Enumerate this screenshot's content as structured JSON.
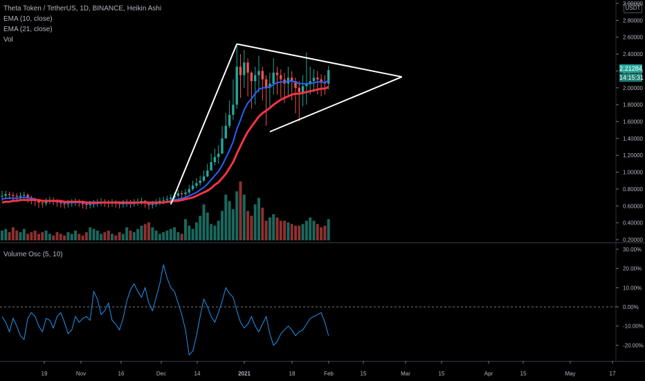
{
  "legend": {
    "title": "Theta Token / TetherUS, 1D, BINANCE, Heikin Ashi",
    "ema10": "EMA (10, close)",
    "ema21": "EMA (21, close)",
    "vol": "Vol",
    "osc": "Volume Osc (5, 10)"
  },
  "currency": "USDT",
  "last_price": "2.21284",
  "countdown": "14:15:31",
  "colors": {
    "up": "#26a69a",
    "down": "#ef5350",
    "ema10": "#2962ff",
    "ema21": "#f23645",
    "osc": "#2196f3",
    "trendlines": "#ffffff"
  },
  "price_axis_labels": [
    "3.00000",
    "2.80000",
    "2.60000",
    "2.40000",
    "2.20000",
    "2.00000",
    "1.80000",
    "1.60000",
    "1.40000",
    "1.20000",
    "1.00000",
    "0.80000",
    "0.60000",
    "0.40000",
    "0.20000"
  ],
  "osc_axis_labels": [
    "30.00%",
    "20.00%",
    "10.00%",
    "0.00%",
    "-10.00%",
    "-20.00%"
  ],
  "time_labels": [
    "19",
    "Nov",
    "16",
    "Dec",
    "14",
    "2021",
    "18",
    "Feb",
    "15",
    "Mar",
    "15",
    "Apr",
    "15",
    "May",
    "17"
  ],
  "chart_data": [
    {
      "type": "candlestick",
      "title": "Theta Token / TetherUS, 1D, BINANCE, Heikin Ashi",
      "ylim": [
        0.2,
        3.0
      ],
      "y_ticks": [
        3.0,
        2.8,
        2.6,
        2.4,
        2.2,
        2.0,
        1.8,
        1.6,
        1.4,
        1.2,
        1.0,
        0.8,
        0.6,
        0.4,
        0.2
      ],
      "x_tick_labels": [
        "19",
        "Nov",
        "16",
        "Dec",
        "14",
        "2021",
        "18",
        "Feb",
        "15",
        "Mar",
        "15",
        "Apr",
        "15",
        "May",
        "17"
      ],
      "close": [
        0.72,
        0.74,
        0.73,
        0.72,
        0.71,
        0.72,
        0.73,
        0.7,
        0.68,
        0.66,
        0.64,
        0.63,
        0.65,
        0.67,
        0.66,
        0.64,
        0.63,
        0.62,
        0.63,
        0.64,
        0.65,
        0.64,
        0.62,
        0.61,
        0.62,
        0.63,
        0.64,
        0.65,
        0.64,
        0.63,
        0.64,
        0.63,
        0.62,
        0.63,
        0.64,
        0.63,
        0.64,
        0.65,
        0.66,
        0.63,
        0.61,
        0.62,
        0.64,
        0.66,
        0.67,
        0.68,
        0.7,
        0.72,
        0.75,
        0.74,
        0.76,
        0.8,
        0.84,
        0.87,
        0.9,
        0.95,
        1.02,
        1.12,
        1.18,
        1.22,
        1.4,
        1.55,
        1.68,
        1.8,
        2.25,
        2.15,
        2.3,
        2.18,
        2.08,
        2.15,
        2.2,
        2.1,
        2.0,
        2.05,
        2.18,
        2.15,
        2.1,
        2.05,
        2.12,
        2.08,
        2.0,
        1.95,
        2.02,
        2.05,
        2.08,
        2.12,
        2.1,
        2.06,
        2.05,
        2.21
      ],
      "high": [
        0.78,
        0.78,
        0.77,
        0.76,
        0.75,
        0.76,
        0.77,
        0.75,
        0.72,
        0.7,
        0.68,
        0.67,
        0.69,
        0.71,
        0.7,
        0.68,
        0.67,
        0.66,
        0.67,
        0.68,
        0.69,
        0.68,
        0.66,
        0.65,
        0.66,
        0.67,
        0.68,
        0.69,
        0.68,
        0.67,
        0.68,
        0.67,
        0.66,
        0.67,
        0.68,
        0.67,
        0.68,
        0.69,
        0.7,
        0.67,
        0.65,
        0.66,
        0.68,
        0.7,
        0.71,
        0.72,
        0.74,
        0.76,
        0.79,
        0.78,
        0.8,
        0.85,
        0.9,
        0.93,
        0.96,
        1.02,
        1.1,
        1.22,
        1.28,
        1.32,
        1.55,
        1.7,
        1.85,
        2.1,
        2.52,
        2.4,
        2.45,
        2.35,
        2.2,
        2.25,
        2.38,
        2.25,
        2.15,
        2.18,
        2.35,
        2.25,
        2.22,
        2.18,
        2.25,
        2.2,
        2.12,
        2.08,
        2.15,
        2.42,
        2.25,
        2.22,
        2.2,
        2.16,
        2.15,
        2.26
      ],
      "low": [
        0.66,
        0.68,
        0.68,
        0.67,
        0.66,
        0.67,
        0.68,
        0.64,
        0.62,
        0.6,
        0.58,
        0.58,
        0.6,
        0.62,
        0.61,
        0.59,
        0.58,
        0.57,
        0.58,
        0.59,
        0.6,
        0.59,
        0.57,
        0.56,
        0.57,
        0.58,
        0.59,
        0.6,
        0.59,
        0.58,
        0.59,
        0.58,
        0.57,
        0.58,
        0.59,
        0.58,
        0.59,
        0.6,
        0.61,
        0.58,
        0.56,
        0.57,
        0.59,
        0.61,
        0.62,
        0.63,
        0.65,
        0.67,
        0.7,
        0.69,
        0.71,
        0.74,
        0.78,
        0.81,
        0.84,
        0.88,
        0.94,
        1.02,
        1.08,
        1.1,
        1.25,
        1.4,
        1.52,
        1.62,
        1.75,
        1.88,
        2.0,
        1.9,
        1.75,
        1.8,
        1.95,
        1.85,
        1.55,
        1.78,
        1.92,
        1.92,
        1.88,
        1.82,
        1.9,
        1.85,
        1.7,
        1.6,
        1.78,
        1.8,
        1.92,
        1.95,
        1.92,
        1.9,
        1.92,
        1.98
      ],
      "ema10": [
        0.68,
        0.69,
        0.69,
        0.69,
        0.69,
        0.7,
        0.7,
        0.7,
        0.69,
        0.68,
        0.67,
        0.66,
        0.66,
        0.66,
        0.66,
        0.65,
        0.65,
        0.64,
        0.64,
        0.64,
        0.64,
        0.64,
        0.64,
        0.63,
        0.63,
        0.63,
        0.63,
        0.64,
        0.64,
        0.64,
        0.64,
        0.64,
        0.63,
        0.63,
        0.63,
        0.63,
        0.63,
        0.64,
        0.64,
        0.64,
        0.63,
        0.63,
        0.63,
        0.64,
        0.64,
        0.65,
        0.66,
        0.67,
        0.68,
        0.69,
        0.7,
        0.72,
        0.74,
        0.76,
        0.79,
        0.82,
        0.86,
        0.91,
        0.96,
        1.01,
        1.08,
        1.17,
        1.26,
        1.36,
        1.51,
        1.62,
        1.74,
        1.82,
        1.87,
        1.93,
        1.98,
        2.0,
        2.0,
        2.01,
        2.04,
        2.06,
        2.07,
        2.07,
        2.08,
        2.08,
        2.07,
        2.05,
        2.05,
        2.05,
        2.05,
        2.06,
        2.07,
        2.07,
        2.06,
        2.09
      ],
      "ema21": [
        0.64,
        0.65,
        0.65,
        0.66,
        0.66,
        0.67,
        0.67,
        0.67,
        0.67,
        0.67,
        0.67,
        0.66,
        0.66,
        0.66,
        0.66,
        0.66,
        0.66,
        0.65,
        0.65,
        0.65,
        0.65,
        0.65,
        0.65,
        0.64,
        0.64,
        0.64,
        0.64,
        0.64,
        0.64,
        0.64,
        0.64,
        0.64,
        0.64,
        0.64,
        0.64,
        0.64,
        0.64,
        0.64,
        0.64,
        0.64,
        0.64,
        0.64,
        0.64,
        0.64,
        0.64,
        0.65,
        0.65,
        0.66,
        0.66,
        0.67,
        0.68,
        0.69,
        0.7,
        0.72,
        0.74,
        0.76,
        0.78,
        0.81,
        0.85,
        0.88,
        0.93,
        0.98,
        1.05,
        1.12,
        1.22,
        1.31,
        1.4,
        1.48,
        1.54,
        1.6,
        1.66,
        1.7,
        1.73,
        1.76,
        1.8,
        1.83,
        1.86,
        1.88,
        1.9,
        1.92,
        1.93,
        1.93,
        1.94,
        1.95,
        1.96,
        1.97,
        1.98,
        1.99,
        1.99,
        2.01
      ],
      "trendlines": [
        {
          "from": [
            46,
            0.62
          ],
          "to": [
            64,
            2.52
          ]
        },
        {
          "from": [
            64,
            2.52
          ],
          "to": [
            109,
            2.13
          ]
        },
        {
          "from": [
            73,
            1.48
          ],
          "to": [
            109,
            2.13
          ]
        }
      ]
    },
    {
      "type": "bar",
      "title": "Vol",
      "values": [
        6,
        7,
        5,
        8,
        6,
        5,
        7,
        4,
        5,
        6,
        4,
        5,
        6,
        4,
        3,
        5,
        4,
        3,
        5,
        4,
        6,
        4,
        3,
        5,
        8,
        7,
        6,
        4,
        5,
        6,
        4,
        3,
        5,
        4,
        8,
        6,
        5,
        7,
        9,
        10,
        11,
        8,
        6,
        4,
        5,
        6,
        7,
        8,
        5,
        4,
        13,
        9,
        7,
        11,
        15,
        22,
        17,
        10,
        9,
        12,
        18,
        28,
        24,
        19,
        30,
        36,
        28,
        18,
        15,
        22,
        26,
        20,
        12,
        14,
        16,
        14,
        12,
        12,
        11,
        10,
        9,
        9,
        10,
        12,
        14,
        12,
        10,
        8,
        9,
        13
      ]
    },
    {
      "type": "line",
      "title": "Volume Osc (5, 10)",
      "ylim": [
        -30,
        30
      ],
      "y_ticks": [
        30,
        20,
        10,
        0,
        -10,
        -20
      ],
      "values": [
        -5,
        -8,
        -13,
        -6,
        -10,
        -15,
        -17,
        -6,
        -3,
        -5,
        -10,
        -13,
        -6,
        -7,
        -11,
        -5,
        -3,
        -8,
        -14,
        -12,
        -5,
        -8,
        -6,
        -5,
        -7,
        8,
        4,
        -4,
        -2,
        2,
        -7,
        -9,
        -12,
        -6,
        3,
        9,
        12,
        8,
        5,
        10,
        2,
        -2,
        5,
        12,
        22,
        15,
        10,
        8,
        2,
        -4,
        -12,
        -25,
        -23,
        -15,
        -5,
        4,
        0,
        -5,
        -8,
        -3,
        3,
        10,
        7,
        5,
        -2,
        -8,
        -11,
        -9,
        -5,
        -10,
        -13,
        -9,
        -5,
        -14,
        -20,
        -18,
        -14,
        -12,
        -10,
        -12,
        -15,
        -13,
        -12,
        -9,
        -6,
        -5,
        -4,
        -3,
        -8,
        -15
      ]
    }
  ]
}
